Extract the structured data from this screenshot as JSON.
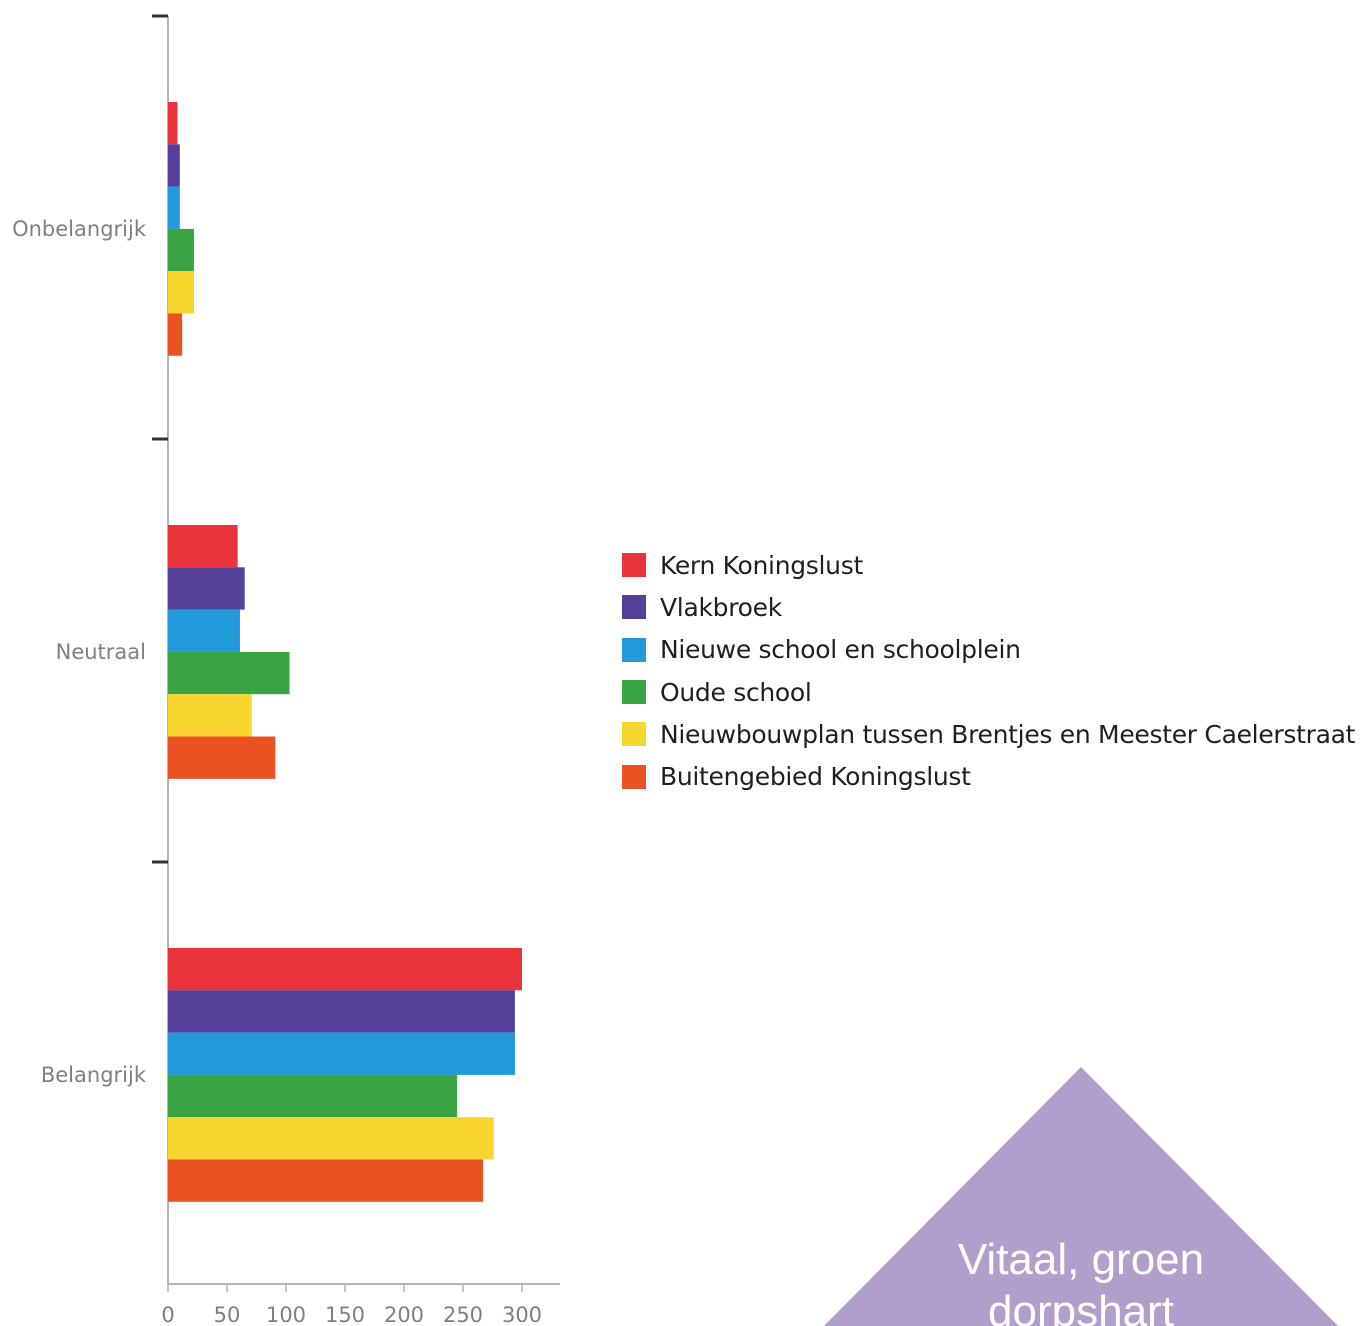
{
  "chart_data": {
    "type": "bar",
    "orientation": "horizontal",
    "categories": [
      "Onbelangrijk",
      "Neutraal",
      "Belangrijk"
    ],
    "x_ticks": [
      "0",
      "50",
      "100",
      "150",
      "200",
      "250",
      "300"
    ],
    "xlim": [
      0,
      330
    ],
    "grid": false,
    "legend_position": "right",
    "series": [
      {
        "name": "Kern Koningslust",
        "color": "#e8333a",
        "values": [
          8,
          59,
          300
        ]
      },
      {
        "name": "Vlakbroek",
        "color": "#544099",
        "values": [
          10,
          65,
          294
        ]
      },
      {
        "name": "Nieuwe school en schoolplein",
        "color": "#2299d9",
        "values": [
          10,
          61,
          294
        ]
      },
      {
        "name": "Oude school",
        "color": "#3aa445",
        "values": [
          22,
          103,
          245
        ]
      },
      {
        "name": "Nieuwbouwplan tussen Brentjes en Meester Caelerstraat",
        "color": "#f9d530",
        "values": [
          22,
          71,
          276
        ]
      },
      {
        "name": "Buitengebied Koningslust",
        "color": "#e95322",
        "values": [
          12,
          91,
          267
        ]
      }
    ]
  },
  "badge": {
    "line1": "Vitaal, groen",
    "line2": "dorpshart",
    "color": "#b19fcb"
  }
}
